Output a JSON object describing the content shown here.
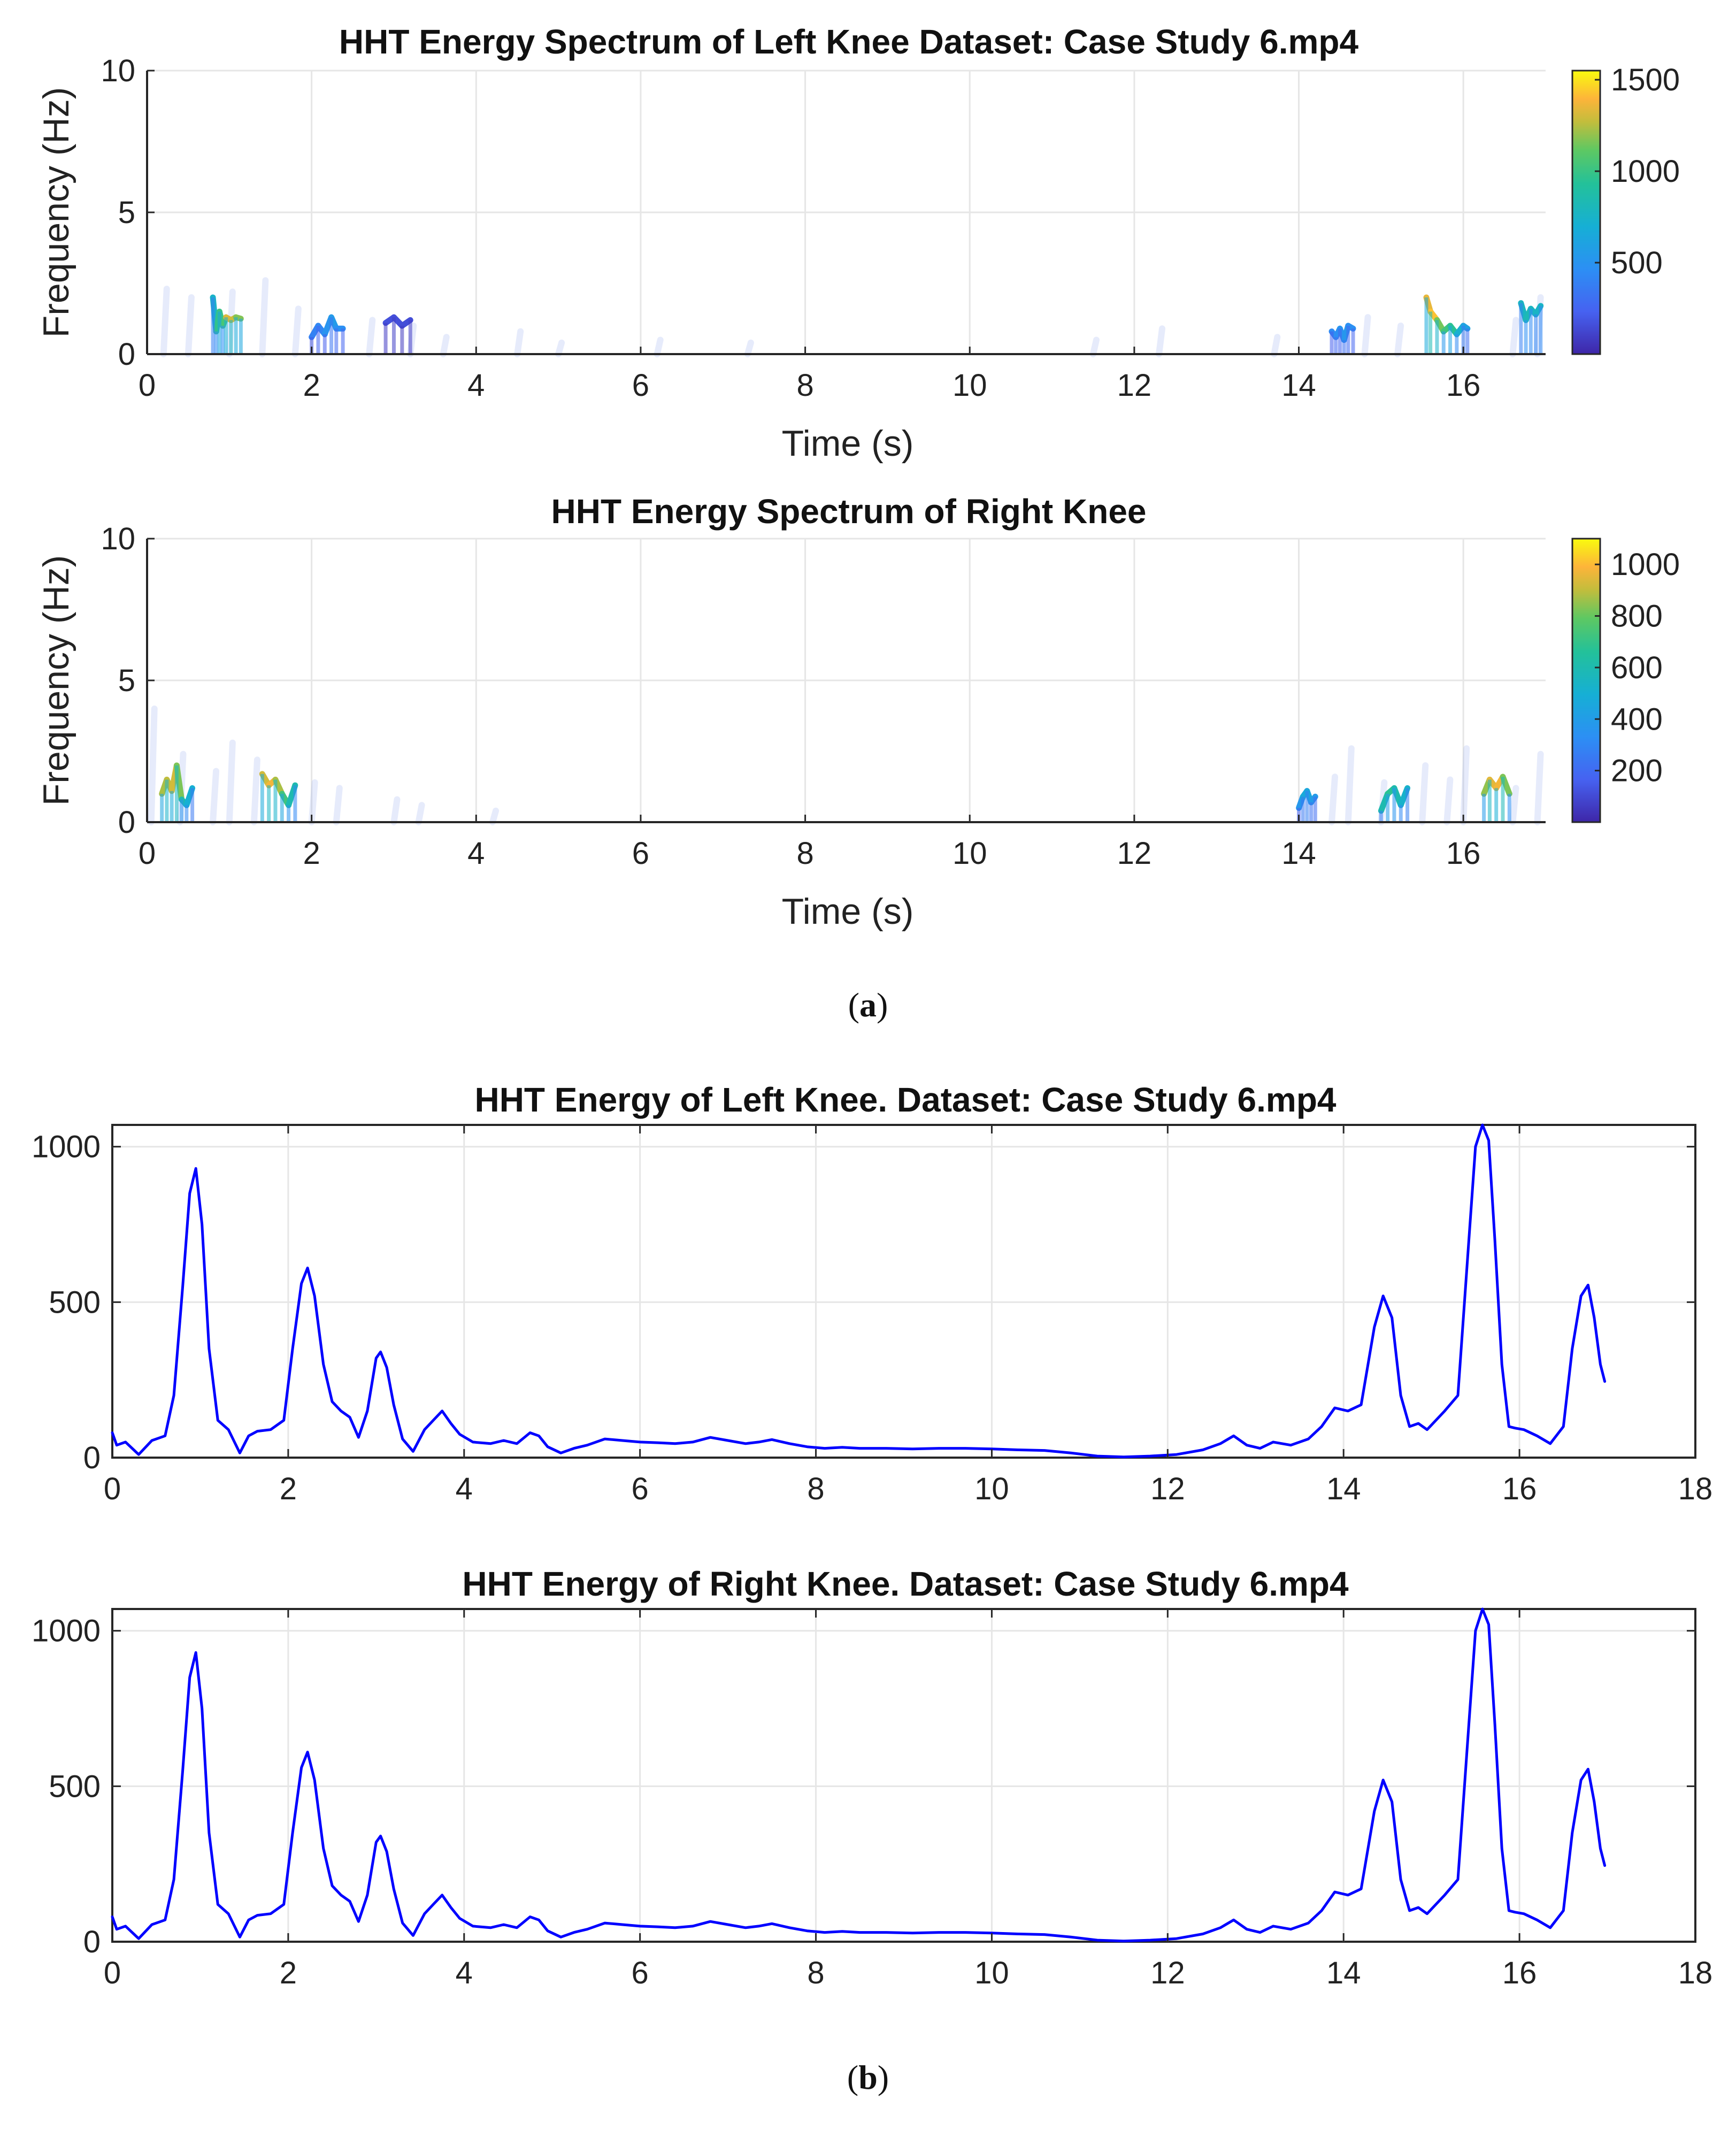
{
  "chart_data": [
    {
      "type": "heatmap",
      "title": "HHT Energy Spectrum of Left Knee Dataset: Case Study 6.mp4",
      "xlabel": "Time (s)",
      "ylabel": "Frequency (Hz)",
      "xlim": [
        0,
        17
      ],
      "ylim": [
        0,
        10
      ],
      "xticks": [
        0,
        2,
        4,
        6,
        8,
        10,
        12,
        14,
        16
      ],
      "yticks": [
        0,
        5,
        10
      ],
      "colorbar": {
        "range": [
          0,
          1550
        ],
        "ticks": [
          500,
          1000,
          1500
        ]
      },
      "grid": true,
      "faint_hints": [
        [
          0.2,
          2.3
        ],
        [
          0.5,
          2.0
        ],
        [
          1.0,
          2.2
        ],
        [
          1.4,
          2.6
        ],
        [
          1.8,
          1.6
        ],
        [
          2.7,
          1.2
        ],
        [
          3.2,
          1.0
        ],
        [
          3.6,
          0.6
        ],
        [
          4.5,
          0.8
        ],
        [
          5.0,
          0.4
        ],
        [
          6.2,
          0.5
        ],
        [
          7.3,
          0.4
        ],
        [
          11.5,
          0.5
        ],
        [
          12.3,
          0.9
        ],
        [
          13.7,
          0.6
        ],
        [
          14.8,
          1.3
        ],
        [
          15.2,
          1.0
        ],
        [
          16.6,
          1.2
        ],
        [
          16.9,
          2.0
        ]
      ],
      "ridges": [
        {
          "t": [
            0.8,
            0.84,
            0.88,
            0.92,
            0.96,
            1.02,
            1.08,
            1.14
          ],
          "f": [
            2.0,
            0.8,
            1.5,
            1.0,
            1.3,
            1.2,
            1.3,
            1.25
          ],
          "e": [
            700,
            800,
            1150,
            850,
            1250,
            1400,
            1200,
            1150
          ]
        },
        {
          "t": [
            2.0,
            2.08,
            2.16,
            2.24,
            2.3,
            2.38
          ],
          "f": [
            0.6,
            1.0,
            0.7,
            1.3,
            0.9,
            0.9
          ],
          "e": [
            350,
            450,
            400,
            600,
            500,
            450
          ]
        },
        {
          "t": [
            2.9,
            3.0,
            3.1,
            3.2
          ],
          "f": [
            1.1,
            1.3,
            1.0,
            1.2
          ],
          "e": [
            150,
            180,
            140,
            160
          ]
        },
        {
          "t": [
            14.4,
            14.45,
            14.5,
            14.55,
            14.6,
            14.66
          ],
          "f": [
            0.8,
            0.6,
            0.9,
            0.5,
            1.0,
            0.9
          ],
          "e": [
            400,
            500,
            450,
            550,
            500,
            450
          ]
        },
        {
          "t": [
            15.55,
            15.6,
            15.68,
            15.76,
            15.84,
            15.92,
            16.0,
            16.05
          ],
          "f": [
            2.0,
            1.5,
            1.2,
            0.8,
            1.0,
            0.7,
            1.0,
            0.9
          ],
          "e": [
            1200,
            1500,
            1350,
            950,
            1100,
            800,
            650,
            550
          ]
        },
        {
          "t": [
            16.7,
            16.76,
            16.82,
            16.88,
            16.94
          ],
          "f": [
            1.8,
            1.2,
            1.6,
            1.4,
            1.7
          ],
          "e": [
            700,
            850,
            800,
            750,
            780
          ]
        }
      ]
    },
    {
      "type": "heatmap",
      "title": "HHT Energy Spectrum of Right Knee",
      "xlabel": "Time (s)",
      "ylabel": "Frequency (Hz)",
      "xlim": [
        0,
        17
      ],
      "ylim": [
        0,
        10
      ],
      "xticks": [
        0,
        2,
        4,
        6,
        8,
        10,
        12,
        14,
        16
      ],
      "yticks": [
        0,
        5,
        10
      ],
      "colorbar": {
        "range": [
          0,
          1100
        ],
        "ticks": [
          200,
          400,
          600,
          800,
          1000
        ]
      },
      "grid": true,
      "faint_hints": [
        [
          0.05,
          4.0
        ],
        [
          0.4,
          2.4
        ],
        [
          0.8,
          1.8
        ],
        [
          1.0,
          2.8
        ],
        [
          1.3,
          2.2
        ],
        [
          2.0,
          1.4
        ],
        [
          2.3,
          1.2
        ],
        [
          3.0,
          0.8
        ],
        [
          3.3,
          0.6
        ],
        [
          4.2,
          0.4
        ],
        [
          14.4,
          1.6
        ],
        [
          14.6,
          2.6
        ],
        [
          15.0,
          1.4
        ],
        [
          15.5,
          2.0
        ],
        [
          15.8,
          1.5
        ],
        [
          16.0,
          2.6
        ],
        [
          16.6,
          1.2
        ],
        [
          16.9,
          2.4
        ]
      ],
      "ridges": [
        {
          "t": [
            0.18,
            0.24,
            0.3,
            0.36,
            0.42,
            0.48,
            0.55
          ],
          "f": [
            1.0,
            1.5,
            1.1,
            2.0,
            0.8,
            0.6,
            1.2
          ],
          "e": [
            800,
            950,
            850,
            1000,
            650,
            550,
            450
          ]
        },
        {
          "t": [
            1.4,
            1.48,
            1.56,
            1.64,
            1.72,
            1.8
          ],
          "f": [
            1.7,
            1.3,
            1.5,
            1.0,
            0.6,
            1.3
          ],
          "e": [
            850,
            1000,
            950,
            800,
            650,
            550
          ]
        },
        {
          "t": [
            14.0,
            14.05,
            14.1,
            14.15,
            14.2
          ],
          "f": [
            0.5,
            0.9,
            1.1,
            0.7,
            0.9
          ],
          "e": [
            300,
            450,
            500,
            400,
            380
          ]
        },
        {
          "t": [
            15.0,
            15.08,
            15.16,
            15.24,
            15.32
          ],
          "f": [
            0.4,
            1.0,
            1.2,
            0.6,
            1.2
          ],
          "e": [
            500,
            700,
            650,
            550,
            500
          ]
        },
        {
          "t": [
            16.25,
            16.32,
            16.4,
            16.48,
            16.56
          ],
          "f": [
            1.0,
            1.5,
            1.2,
            1.6,
            1.0
          ],
          "e": [
            700,
            1000,
            900,
            1050,
            600
          ]
        }
      ]
    },
    {
      "type": "line",
      "title": "HHT Energy of Left Knee. Dataset: Case Study 6.mp4",
      "xlabel": "",
      "ylabel": "",
      "xlim": [
        0,
        18
      ],
      "ylim": [
        0,
        1070
      ],
      "xticks": [
        0,
        2,
        4,
        6,
        8,
        10,
        12,
        14,
        16,
        18
      ],
      "yticks": [
        0,
        500,
        1000
      ],
      "grid": true,
      "series": [
        {
          "name": "energy",
          "color": "#0000ff",
          "x": [
            0,
            0.05,
            0.15,
            0.3,
            0.45,
            0.6,
            0.7,
            0.8,
            0.88,
            0.95,
            1.02,
            1.1,
            1.2,
            1.32,
            1.45,
            1.55,
            1.65,
            1.8,
            1.95,
            2.05,
            2.15,
            2.22,
            2.3,
            2.4,
            2.5,
            2.6,
            2.7,
            2.8,
            2.9,
            3.0,
            3.05,
            3.12,
            3.2,
            3.3,
            3.42,
            3.55,
            3.65,
            3.75,
            3.85,
            3.95,
            4.1,
            4.3,
            4.45,
            4.6,
            4.75,
            4.85,
            4.95,
            5.1,
            5.25,
            5.4,
            5.6,
            5.8,
            6.0,
            6.2,
            6.4,
            6.6,
            6.8,
            7.0,
            7.2,
            7.35,
            7.5,
            7.7,
            7.9,
            8.1,
            8.3,
            8.5,
            8.8,
            9.1,
            9.4,
            9.7,
            10.0,
            10.3,
            10.6,
            10.9,
            11.2,
            11.5,
            11.8,
            12.1,
            12.4,
            12.6,
            12.75,
            12.9,
            13.05,
            13.2,
            13.4,
            13.6,
            13.75,
            13.9,
            14.05,
            14.2,
            14.35,
            14.45,
            14.55,
            14.65,
            14.75,
            14.85,
            14.95,
            15.05,
            15.15,
            15.3,
            15.4,
            15.5,
            15.58,
            15.65,
            15.72,
            15.8,
            15.88,
            15.95,
            16.05,
            16.2,
            16.35,
            16.5,
            16.6,
            16.7,
            16.78,
            16.85,
            16.92,
            16.97
          ],
          "y": [
            80,
            40,
            50,
            10,
            55,
            70,
            200,
            550,
            850,
            930,
            750,
            350,
            120,
            90,
            15,
            70,
            85,
            90,
            120,
            350,
            560,
            610,
            520,
            300,
            180,
            150,
            130,
            65,
            150,
            320,
            340,
            290,
            170,
            60,
            20,
            90,
            120,
            150,
            110,
            75,
            50,
            45,
            55,
            45,
            80,
            70,
            35,
            15,
            30,
            40,
            60,
            55,
            50,
            48,
            45,
            50,
            65,
            55,
            45,
            50,
            58,
            45,
            35,
            30,
            33,
            30,
            30,
            28,
            30,
            30,
            28,
            25,
            23,
            15,
            5,
            2,
            5,
            10,
            25,
            45,
            70,
            40,
            30,
            50,
            40,
            60,
            100,
            160,
            150,
            170,
            420,
            520,
            450,
            200,
            100,
            110,
            90,
            120,
            150,
            200,
            600,
            1000,
            1070,
            1020,
            700,
            300,
            100,
            95,
            90,
            70,
            45,
            100,
            350,
            520,
            555,
            450,
            300,
            245
          ]
        }
      ]
    },
    {
      "type": "line",
      "title": "HHT Energy of Right Knee. Dataset: Case Study 6.mp4",
      "xlabel": "",
      "ylabel": "",
      "xlim": [
        0,
        18
      ],
      "ylim": [
        0,
        1070
      ],
      "xticks": [
        0,
        2,
        4,
        6,
        8,
        10,
        12,
        14,
        16,
        18
      ],
      "yticks": [
        0,
        500,
        1000
      ],
      "grid": true,
      "series": [
        {
          "name": "energy",
          "color": "#0000ff",
          "x": [
            0,
            0.05,
            0.15,
            0.3,
            0.45,
            0.6,
            0.7,
            0.8,
            0.88,
            0.95,
            1.02,
            1.1,
            1.2,
            1.32,
            1.45,
            1.55,
            1.65,
            1.8,
            1.95,
            2.05,
            2.15,
            2.22,
            2.3,
            2.4,
            2.5,
            2.6,
            2.7,
            2.8,
            2.9,
            3.0,
            3.05,
            3.12,
            3.2,
            3.3,
            3.42,
            3.55,
            3.65,
            3.75,
            3.85,
            3.95,
            4.1,
            4.3,
            4.45,
            4.6,
            4.75,
            4.85,
            4.95,
            5.1,
            5.25,
            5.4,
            5.6,
            5.8,
            6.0,
            6.2,
            6.4,
            6.6,
            6.8,
            7.0,
            7.2,
            7.35,
            7.5,
            7.7,
            7.9,
            8.1,
            8.3,
            8.5,
            8.8,
            9.1,
            9.4,
            9.7,
            10.0,
            10.3,
            10.6,
            10.9,
            11.2,
            11.5,
            11.8,
            12.1,
            12.4,
            12.6,
            12.75,
            12.9,
            13.05,
            13.2,
            13.4,
            13.6,
            13.75,
            13.9,
            14.05,
            14.2,
            14.35,
            14.45,
            14.55,
            14.65,
            14.75,
            14.85,
            14.95,
            15.05,
            15.15,
            15.3,
            15.4,
            15.5,
            15.58,
            15.65,
            15.72,
            15.8,
            15.88,
            15.95,
            16.05,
            16.2,
            16.35,
            16.5,
            16.6,
            16.7,
            16.78,
            16.85,
            16.92,
            16.97
          ],
          "y": [
            80,
            40,
            50,
            10,
            55,
            70,
            200,
            550,
            850,
            930,
            750,
            350,
            120,
            90,
            15,
            70,
            85,
            90,
            120,
            350,
            560,
            610,
            520,
            300,
            180,
            150,
            130,
            65,
            150,
            320,
            340,
            290,
            170,
            60,
            20,
            90,
            120,
            150,
            110,
            75,
            50,
            45,
            55,
            45,
            80,
            70,
            35,
            15,
            30,
            40,
            60,
            55,
            50,
            48,
            45,
            50,
            65,
            55,
            45,
            50,
            58,
            45,
            35,
            30,
            33,
            30,
            30,
            28,
            30,
            30,
            28,
            25,
            23,
            15,
            5,
            2,
            5,
            10,
            25,
            45,
            70,
            40,
            30,
            50,
            40,
            60,
            100,
            160,
            150,
            170,
            420,
            520,
            450,
            200,
            100,
            110,
            90,
            120,
            150,
            200,
            600,
            1000,
            1070,
            1020,
            700,
            300,
            100,
            95,
            90,
            70,
            45,
            100,
            350,
            520,
            555,
            450,
            300,
            245
          ]
        }
      ]
    }
  ],
  "captions": {
    "a_open": "(",
    "a_letter": "a",
    "a_close": ")",
    "b_open": "(",
    "b_letter": "b",
    "b_close": ")"
  },
  "colors": {
    "line": "#0000ff",
    "axis": "#262626",
    "grid": "#e6e6e6"
  }
}
